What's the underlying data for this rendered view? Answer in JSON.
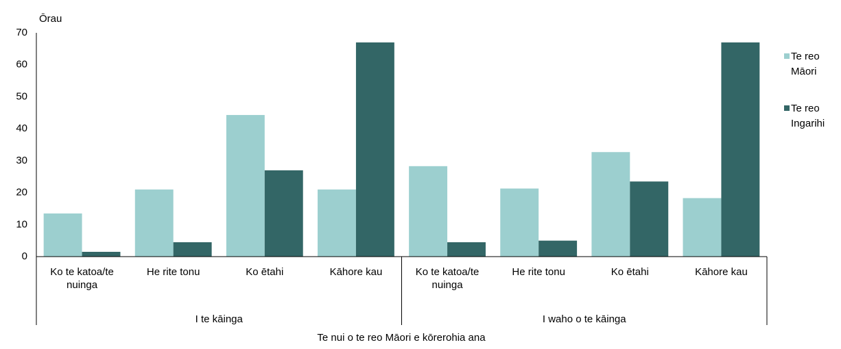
{
  "chart_data": {
    "type": "bar",
    "y_axis_label": "Ōrau",
    "x_axis_label": "Te nui o te reo Māori e kōrerohia ana",
    "groups": [
      {
        "name": "I te kāinga",
        "categories": [
          "Ko te katoa/te nuinga",
          "He rite tonu",
          "Ko ētahi",
          "Kāhore kau"
        ]
      },
      {
        "name": "I waho o te kāinga",
        "categories": [
          "Ko te katoa/te nuinga",
          "He rite tonu",
          "Ko ētahi",
          "Kāhore kau"
        ]
      }
    ],
    "series": [
      {
        "name": "Te reo Māori",
        "color": "#9ccfcf",
        "values": [
          13.5,
          21,
          44.3,
          21,
          28.3,
          21.3,
          32.7,
          18.3
        ]
      },
      {
        "name": "Te reo Ingarihi",
        "color": "#336666",
        "values": [
          1.5,
          4.5,
          27,
          67,
          4.5,
          5,
          23.5,
          67
        ]
      }
    ],
    "ylim": [
      0,
      70
    ],
    "yticks": [
      0,
      10,
      20,
      30,
      40,
      50,
      60,
      70
    ],
    "grid": false,
    "legend": "right"
  }
}
